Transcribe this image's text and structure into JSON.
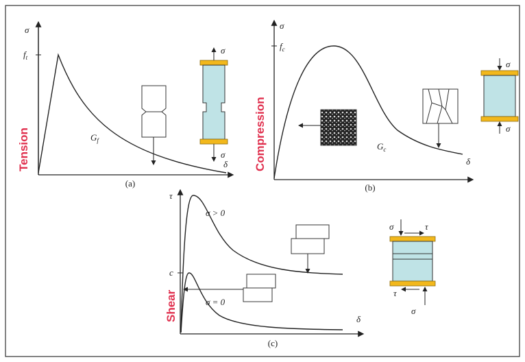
{
  "panels": {
    "a": {
      "caption": "(a)",
      "y_label": "σ",
      "peak_label": {
        "symbol": "f",
        "sub": "t"
      },
      "energy_label": {
        "symbol": "G",
        "sub": "f"
      },
      "mode": "Tension",
      "top_load": "σ",
      "bottom_load": "σ",
      "x_label": "δ"
    },
    "b": {
      "caption": "(b)",
      "y_label": "σ",
      "peak_label": {
        "symbol": "f",
        "sub": "c"
      },
      "energy_label": {
        "symbol": "G",
        "sub": "c"
      },
      "mode": "Compression",
      "top_load": "σ",
      "bottom_load": "σ",
      "x_label": "δ"
    },
    "c": {
      "caption": "(c)",
      "y_label": "τ",
      "upper_curve_label": "σ > 0",
      "peak_label": "c",
      "lower_curve_label": "σ = 0",
      "mode": "Shear",
      "x_label": "δ",
      "top_normal": "σ",
      "top_shear": "τ",
      "bottom_shear": "τ",
      "bottom_normal": "σ"
    }
  }
}
